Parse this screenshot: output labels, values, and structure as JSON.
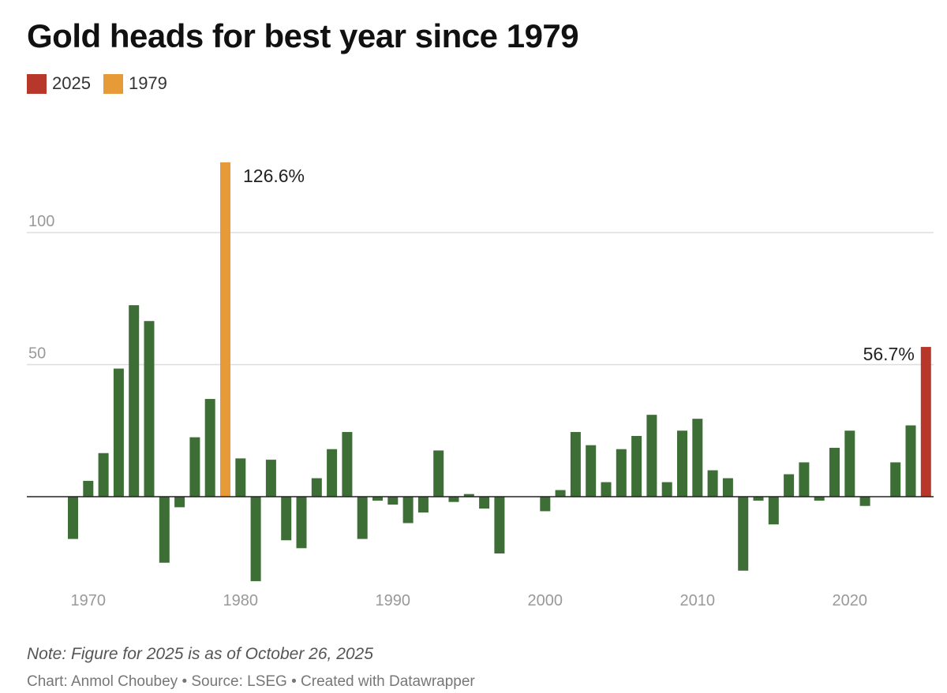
{
  "title": "Gold heads for best year since 1979",
  "legend": [
    {
      "label": "2025",
      "color": "#b8372b"
    },
    {
      "label": "1979",
      "color": "#e69a38"
    }
  ],
  "colors": {
    "default_bar": "#3d6e35",
    "highlight_2025": "#b8372b",
    "highlight_1979": "#e69a38",
    "gridline": "#dddddd",
    "axis_tick": "#999999"
  },
  "note": "Note: Figure for 2025 is as of October 26, 2025",
  "credits": "Chart: Anmol Choubey • Source: LSEG • Created with Datawrapper",
  "chart_data": {
    "type": "bar",
    "title": "Gold heads for best year since 1979",
    "xlabel": "",
    "ylabel": "",
    "ylim": [
      -35,
      130
    ],
    "yticks": [
      "50",
      "100"
    ],
    "xticks": [
      "1970",
      "1980",
      "1990",
      "2000",
      "2010",
      "2020"
    ],
    "grid": true,
    "legend_position": "top-left",
    "categories": [
      1969,
      1970,
      1971,
      1972,
      1973,
      1974,
      1975,
      1976,
      1977,
      1978,
      1979,
      1980,
      1981,
      1982,
      1983,
      1984,
      1985,
      1986,
      1987,
      1988,
      1989,
      1990,
      1991,
      1992,
      1993,
      1994,
      1995,
      1996,
      1997,
      1998,
      1999,
      2000,
      2001,
      2002,
      2003,
      2004,
      2005,
      2006,
      2007,
      2008,
      2009,
      2010,
      2011,
      2012,
      2013,
      2014,
      2015,
      2016,
      2017,
      2018,
      2019,
      2020,
      2021,
      2022,
      2023,
      2024,
      2025
    ],
    "values": [
      -16,
      6,
      16.5,
      48.5,
      72.5,
      66.5,
      -25,
      -4,
      22.5,
      37,
      126.6,
      14.5,
      -32,
      14,
      -16.5,
      -19.5,
      7,
      18,
      24.5,
      -16,
      -1.5,
      -3,
      -10,
      -6,
      17.5,
      -2,
      1,
      -4.5,
      -21.5,
      0,
      0,
      -5.5,
      2.5,
      24.5,
      19.5,
      5.5,
      18,
      23,
      31,
      5.5,
      25,
      29.5,
      10,
      7,
      -28,
      -1.5,
      -10.5,
      8.5,
      13,
      -1.5,
      18.5,
      25,
      -3.5,
      0,
      13,
      27,
      56.7
    ],
    "annotations": [
      {
        "year": 1979,
        "label": "126.6%"
      },
      {
        "year": 2025,
        "label": "56.7%"
      }
    ]
  }
}
